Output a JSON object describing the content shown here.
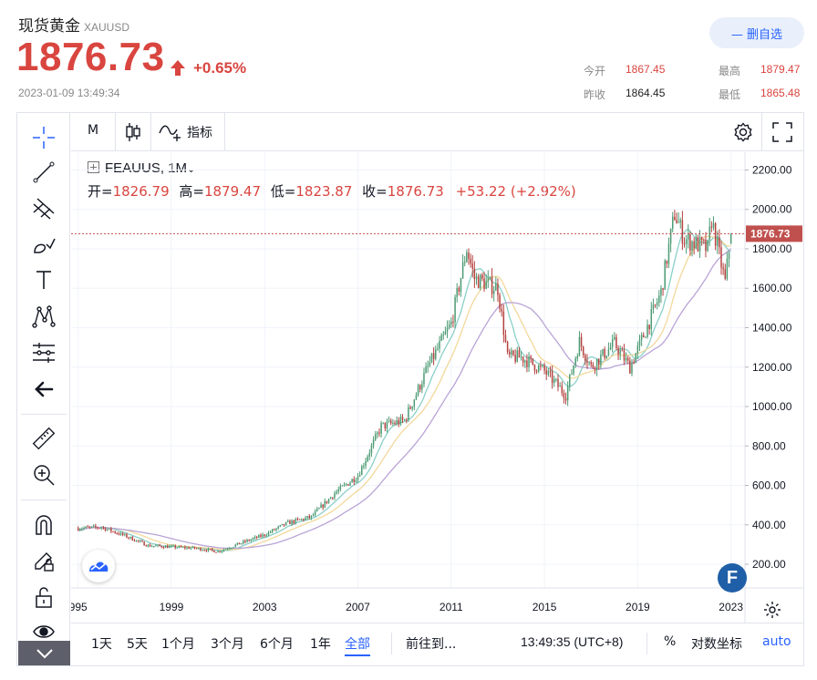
{
  "header": {
    "title": "现货黄金",
    "symbol": "XAUUSD",
    "price": "1876.73",
    "change_pct": "+0.65%",
    "timestamp": "2023-01-09 13:49:34",
    "favorite_button": "— 删自选",
    "stats": {
      "open_label": "今开",
      "open": "1867.45",
      "high_label": "最高",
      "high": "1879.47",
      "prev_close_label": "昨收",
      "prev_close": "1864.45",
      "low_label": "最低",
      "low": "1865.48"
    },
    "colors": {
      "up": "#d9453f",
      "accent": "#2962ff"
    }
  },
  "toolbar": {
    "interval": "M",
    "indicators_label": "指标"
  },
  "legend": {
    "symbol": "FEAUUS, 1M",
    "open_label": "开=",
    "open": "1826.79",
    "high_label": "高=",
    "high": "1879.47",
    "low_label": "低=",
    "low": "1823.87",
    "close_label": "收=",
    "close": "1876.73",
    "change": "+53.22 (+2.92%)"
  },
  "bottom_bar": {
    "ranges": [
      "1天",
      "5天",
      "1个月",
      "3个月",
      "6个月",
      "1年",
      "全部"
    ],
    "active_range": "全部",
    "goto": "前往到...",
    "clock": "13:49:35 (UTC+8)",
    "percent": "%",
    "log": "对数坐标",
    "auto": "auto"
  },
  "left_tools": [
    "crosshair-icon",
    "trend-line-icon",
    "fib-icon",
    "brush-icon",
    "text-icon",
    "pattern-icon",
    "measure-lines-icon",
    "back-arrow-icon",
    "ruler-icon",
    "zoom-in-icon",
    "magnet-icon",
    "lock-draw-icon",
    "unlock-icon",
    "eye-icon",
    "collapse-icon"
  ],
  "chart_data": {
    "type": "candlestick",
    "x_ticks": [
      "995",
      "1999",
      "2003",
      "2007",
      "2011",
      "2015",
      "2019",
      "2023"
    ],
    "y_ticks": [
      "200.00",
      "400.00",
      "600.00",
      "800.00",
      "1000.00",
      "1200.00",
      "1400.00",
      "1600.00",
      "1800.00",
      "2000.00",
      "2200.00"
    ],
    "ylim": [
      80,
      2290
    ],
    "last_price_label": "1876.73",
    "colors": {
      "up": "#4c9b74",
      "down": "#b5423f",
      "ma_short": "#8ad0c8",
      "ma_mid": "#f3d89c",
      "ma_long": "#b9a4d6",
      "last_line": "#c0504d"
    },
    "series": [
      {
        "name": "",
        "x": [
          "1995-01",
          "1996-01",
          "1997-01",
          "1998-01",
          "1999-01",
          "2000-01",
          "2001-01",
          "2002-01",
          "2003-01",
          "2004-01",
          "2005-01",
          "2006-01",
          "2007-01",
          "2008-01",
          "2009-01",
          "2010-01",
          "2011-01",
          "2011-09",
          "2012-01",
          "2013-01",
          "2013-06",
          "2014-01",
          "2015-01",
          "2015-12",
          "2016-07",
          "2017-01",
          "2018-01",
          "2018-09",
          "2019-01",
          "2019-09",
          "2020-01",
          "2020-08",
          "2021-01",
          "2022-01",
          "2022-03",
          "2022-10",
          "2023-01"
        ],
        "y": [
          383,
          388,
          345,
          295,
          288,
          282,
          265,
          308,
          350,
          410,
          440,
          560,
          650,
          900,
          930,
          1200,
          1420,
          1800,
          1650,
          1600,
          1250,
          1250,
          1180,
          1060,
          1330,
          1200,
          1320,
          1200,
          1290,
          1480,
          1580,
          1980,
          1850,
          1800,
          1950,
          1630,
          1877
        ]
      }
    ]
  }
}
